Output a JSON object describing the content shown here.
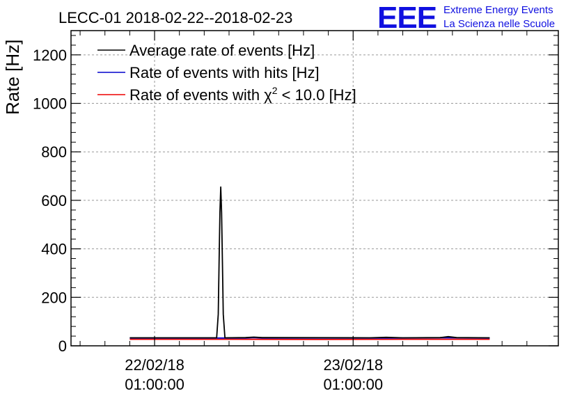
{
  "title": "LECC-01 2018-02-22--2018-02-23",
  "logo": {
    "mark": "EEE",
    "line1": "Extreme Energy Events",
    "line2": "La Scienza nelle Scuole",
    "color": "#1010e0"
  },
  "chart_data": {
    "type": "line",
    "ylabel": "Rate [Hz]",
    "xlabel": "",
    "ylim": [
      0,
      1300
    ],
    "yticks": [
      0,
      200,
      400,
      600,
      800,
      1000,
      1200
    ],
    "x_unit": "hours since 2018-02-22 01:00:00",
    "xlim": [
      -10.1,
      48.8
    ],
    "xticks": [
      {
        "x": 0,
        "label_date": "22/02/18",
        "label_time": "01:00:00"
      },
      {
        "x": 24,
        "label_date": "23/02/18",
        "label_time": "01:00:00"
      }
    ],
    "grid": true,
    "legend_position": "top-left",
    "series": [
      {
        "name": "Average rate of events [Hz]",
        "color": "#000000",
        "points": [
          [
            -3,
            33
          ],
          [
            7.5,
            33
          ],
          [
            7.7,
            130
          ],
          [
            7.8,
            345
          ],
          [
            7.9,
            550
          ],
          [
            8.0,
            655
          ],
          [
            8.1,
            550
          ],
          [
            8.2,
            345
          ],
          [
            8.3,
            130
          ],
          [
            8.5,
            33
          ],
          [
            11,
            34
          ],
          [
            12,
            36
          ],
          [
            13,
            34
          ],
          [
            26,
            33
          ],
          [
            28,
            35
          ],
          [
            30,
            33
          ],
          [
            34.5,
            34
          ],
          [
            35.5,
            38
          ],
          [
            36.5,
            34
          ],
          [
            40.5,
            33
          ]
        ]
      },
      {
        "name": "Rate of events with hits [Hz]",
        "color": "#0000cc",
        "points": [
          [
            -3,
            32
          ],
          [
            11,
            32
          ],
          [
            12,
            34
          ],
          [
            13,
            32
          ],
          [
            28,
            32
          ],
          [
            35.5,
            33
          ],
          [
            40.5,
            32
          ]
        ]
      },
      {
        "name": "Rate of events with χ² < 10.0 [Hz]",
        "name_prefix": "Rate of events with χ",
        "name_sup": "2",
        "name_suffix": " < 10.0 [Hz]",
        "color": "#ee0000",
        "points": [
          [
            -3,
            27
          ],
          [
            10,
            27
          ],
          [
            20,
            26
          ],
          [
            30,
            27
          ],
          [
            40.5,
            27
          ]
        ]
      }
    ]
  }
}
